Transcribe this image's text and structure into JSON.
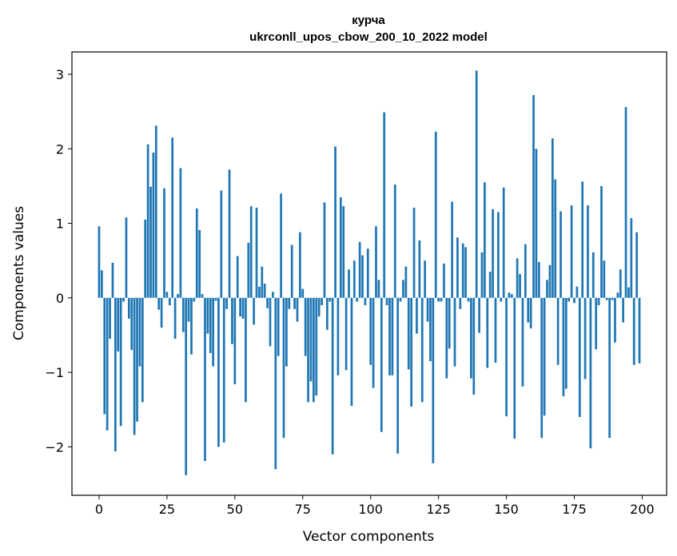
{
  "chart_data": {
    "type": "bar",
    "title": "курча",
    "subtitle": "ukrconll_upos_cbow_200_10_2022 model",
    "xlabel": "Vector components",
    "ylabel": "Components values",
    "xlim": [
      -10,
      209
    ],
    "ylim": [
      -2.65,
      3.3
    ],
    "xticks": [
      0,
      25,
      50,
      75,
      100,
      125,
      150,
      175,
      200
    ],
    "yticks": [
      -2,
      -1,
      0,
      1,
      2,
      3
    ],
    "ytick_labels": [
      "−2",
      "−1",
      "0",
      "1",
      "2",
      "3"
    ],
    "bar_color": "#1f77b4",
    "x": [
      0,
      1,
      2,
      3,
      4,
      5,
      6,
      7,
      8,
      9,
      10,
      11,
      12,
      13,
      14,
      15,
      16,
      17,
      18,
      19,
      20,
      21,
      22,
      23,
      24,
      25,
      26,
      27,
      28,
      29,
      30,
      31,
      32,
      33,
      34,
      35,
      36,
      37,
      38,
      39,
      40,
      41,
      42,
      43,
      44,
      45,
      46,
      47,
      48,
      49,
      50,
      51,
      52,
      53,
      54,
      55,
      56,
      57,
      58,
      59,
      60,
      61,
      62,
      63,
      64,
      65,
      66,
      67,
      68,
      69,
      70,
      71,
      72,
      73,
      74,
      75,
      76,
      77,
      78,
      79,
      80,
      81,
      82,
      83,
      84,
      85,
      86,
      87,
      88,
      89,
      90,
      91,
      92,
      93,
      94,
      95,
      96,
      97,
      98,
      99,
      100,
      101,
      102,
      103,
      104,
      105,
      106,
      107,
      108,
      109,
      110,
      111,
      112,
      113,
      114,
      115,
      116,
      117,
      118,
      119,
      120,
      121,
      122,
      123,
      124,
      125,
      126,
      127,
      128,
      129,
      130,
      131,
      132,
      133,
      134,
      135,
      136,
      137,
      138,
      139,
      140,
      141,
      142,
      143,
      144,
      145,
      146,
      147,
      148,
      149,
      150,
      151,
      152,
      153,
      154,
      155,
      156,
      157,
      158,
      159,
      160,
      161,
      162,
      163,
      164,
      165,
      166,
      167,
      168,
      169,
      170,
      171,
      172,
      173,
      174,
      175,
      176,
      177,
      178,
      179,
      180,
      181,
      182,
      183,
      184,
      185,
      186,
      187,
      188,
      189,
      190,
      191,
      192,
      193,
      194,
      195,
      196,
      197,
      198,
      199
    ],
    "values": [
      0.96,
      0.37,
      -1.56,
      -1.78,
      -0.55,
      0.47,
      -2.06,
      -0.72,
      -1.72,
      -0.05,
      1.08,
      -0.28,
      -0.7,
      -1.84,
      -1.66,
      -0.92,
      -1.4,
      1.05,
      2.06,
      1.49,
      1.95,
      2.31,
      -0.16,
      -0.4,
      1.47,
      0.08,
      -0.1,
      2.15,
      -0.55,
      0.05,
      1.74,
      -0.46,
      -2.38,
      -0.32,
      -0.76,
      -0.05,
      1.2,
      0.91,
      0.05,
      -2.19,
      -0.48,
      -0.74,
      -0.92,
      -0.04,
      -2.0,
      1.44,
      -1.94,
      -0.15,
      1.72,
      -0.62,
      -1.16,
      0.56,
      -0.25,
      -0.28,
      -1.4,
      0.74,
      1.23,
      -0.36,
      1.21,
      0.15,
      0.42,
      0.19,
      -0.14,
      -0.65,
      0.08,
      -2.3,
      -0.78,
      1.4,
      -1.88,
      -0.92,
      -0.15,
      0.71,
      -0.15,
      -0.32,
      0.88,
      0.12,
      -0.78,
      -1.4,
      -1.12,
      -1.4,
      -1.31,
      -0.25,
      -0.1,
      1.28,
      -0.43,
      -0.05,
      -2.1,
      2.03,
      -1.04,
      1.35,
      1.23,
      -0.97,
      0.38,
      -1.45,
      0.5,
      -0.05,
      0.75,
      0.57,
      -0.1,
      0.66,
      -0.9,
      -1.21,
      0.96,
      0.24,
      -1.8,
      2.49,
      -0.1,
      -1.04,
      -1.04,
      1.52,
      -2.09,
      -0.05,
      0.24,
      0.42,
      -0.96,
      -1.46,
      1.21,
      -0.48,
      0.77,
      -1.4,
      0.5,
      -0.32,
      -0.85,
      -2.22,
      2.23,
      -0.05,
      -0.05,
      0.46,
      -1.08,
      -0.68,
      1.29,
      -0.92,
      0.81,
      -0.15,
      0.73,
      0.68,
      -0.05,
      -1.08,
      -1.3,
      3.05,
      -0.47,
      0.61,
      1.55,
      -0.94,
      0.35,
      1.19,
      -0.87,
      1.15,
      -0.05,
      1.48,
      -1.59,
      0.07,
      0.05,
      -1.89,
      0.53,
      0.32,
      -1.19,
      0.72,
      -0.33,
      -0.41,
      2.72,
      2.0,
      0.48,
      -1.88,
      -1.58,
      0.24,
      0.44,
      2.14,
      1.59,
      -0.9,
      1.16,
      -1.32,
      -1.22,
      -0.05,
      1.24,
      -0.07,
      0.15,
      -1.6,
      1.56,
      -1.09,
      1.24,
      -2.02,
      0.61,
      -0.69,
      -0.1,
      1.5,
      0.5,
      -0.03,
      -1.88,
      -0.03,
      -0.6,
      0.07,
      0.38,
      -0.33,
      2.56,
      0.14,
      1.07,
      -0.9,
      0.88,
      -0.88
    ]
  }
}
